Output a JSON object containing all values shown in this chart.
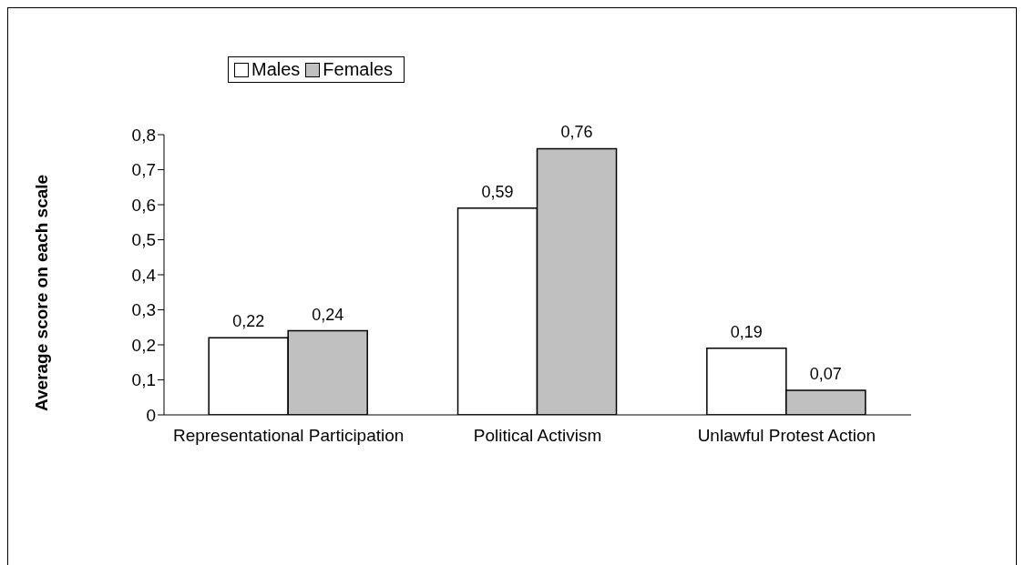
{
  "chart_data": {
    "type": "bar",
    "ylabel": "Average score on each scale",
    "categories": [
      "Representational Participation",
      "Political Activism",
      "Unlawful Protest Action"
    ],
    "series": [
      {
        "name": "Males",
        "color": "#ffffff",
        "values": [
          0.22,
          0.59,
          0.19
        ],
        "value_labels": [
          "0,22",
          "0,59",
          "0,19"
        ]
      },
      {
        "name": "Females",
        "color": "#c0c0c0",
        "values": [
          0.24,
          0.76,
          0.07
        ],
        "value_labels": [
          "0,24",
          "0,76",
          "0,07"
        ]
      }
    ],
    "ylim": [
      0,
      0.8
    ],
    "yticks": [
      {
        "value": 0,
        "label": "0"
      },
      {
        "value": 0.1,
        "label": "0,1"
      },
      {
        "value": 0.2,
        "label": "0,2"
      },
      {
        "value": 0.3,
        "label": "0,3"
      },
      {
        "value": 0.4,
        "label": "0,4"
      },
      {
        "value": 0.5,
        "label": "0,5"
      },
      {
        "value": 0.6,
        "label": "0,6"
      },
      {
        "value": 0.7,
        "label": "0,7"
      },
      {
        "value": 0.8,
        "label": "0,8"
      }
    ],
    "grid": false,
    "legend": "top left"
  }
}
